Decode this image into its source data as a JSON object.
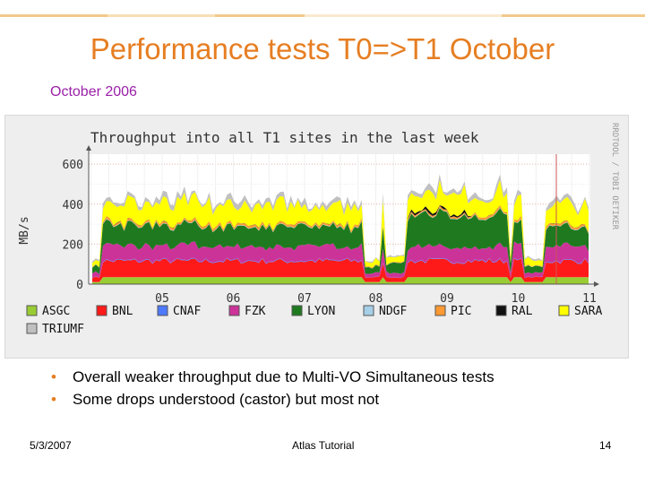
{
  "slide": {
    "title": "Performance tests T0=>T1 October",
    "subtitle": "October 2006",
    "bullets": [
      "Overall weaker throughput due to Multi-VO  Simultaneous tests",
      "Some drops understood (castor) but most not"
    ],
    "footer": {
      "date": "5/3/2007",
      "center": "Atlas Tutorial",
      "page": "14"
    },
    "accent_color": "#e67e22",
    "subtitle_color": "#9b1fa8"
  },
  "chart_data": {
    "type": "area",
    "title": "Throughput into all T1 sites in the last week",
    "ylabel": "MB/s",
    "watermark": "RRDTOOL / TOBI OETIKER",
    "x_ticks": [
      "05",
      "06",
      "07",
      "08",
      "09",
      "10",
      "11"
    ],
    "y_ticks": [
      "0",
      "200",
      "400",
      "600"
    ],
    "ylim": [
      0,
      650
    ],
    "stacked": true,
    "series": [
      {
        "name": "ASGC",
        "color": "#99cc33"
      },
      {
        "name": "BNL",
        "color": "#ff1a1a"
      },
      {
        "name": "CNAF",
        "color": "#4d79ff"
      },
      {
        "name": "FZK",
        "color": "#cc3399"
      },
      {
        "name": "LYON",
        "color": "#1f7a1f"
      },
      {
        "name": "NDGF",
        "color": "#a6cfe8"
      },
      {
        "name": "PIC",
        "color": "#ff9933"
      },
      {
        "name": "RAL",
        "color": "#111111"
      },
      {
        "name": "SARA",
        "color": "#ffff00"
      },
      {
        "name": "TRIUMF",
        "color": "#c0c0c0"
      }
    ]
  }
}
